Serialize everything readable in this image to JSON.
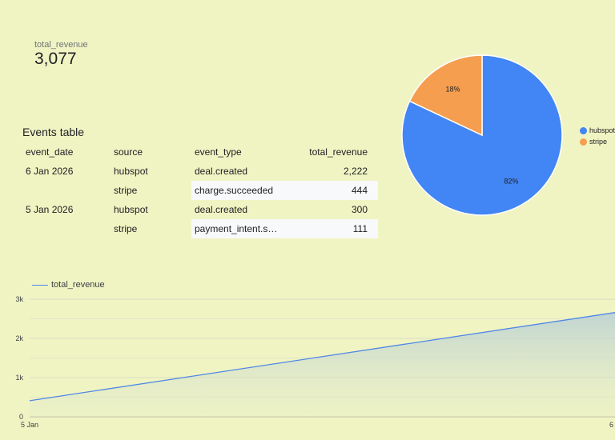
{
  "scorecard": {
    "label": "total_revenue",
    "value": "3,077"
  },
  "table": {
    "title": "Events table",
    "headers": [
      "event_date",
      "source",
      "event_type",
      "total_revenue"
    ],
    "rows": [
      {
        "date": "6 Jan 2026",
        "source": "hubspot",
        "type": "deal.created",
        "revenue": "2,222",
        "highlight": false
      },
      {
        "date": "",
        "source": "stripe",
        "type": "charge.succeeded",
        "revenue": "444",
        "highlight": true
      },
      {
        "date": "5 Jan 2026",
        "source": "hubspot",
        "type": "deal.created",
        "revenue": "300",
        "highlight": false
      },
      {
        "date": "",
        "source": "stripe",
        "type": "payment_intent.s…",
        "revenue": "111",
        "highlight": true
      }
    ]
  },
  "chart_data": [
    {
      "type": "pie",
      "slices": [
        {
          "label": "hubspot",
          "value": 82,
          "display": "82%",
          "color": "#4285f4"
        },
        {
          "label": "stripe",
          "value": 18,
          "display": "18%",
          "color": "#f59e4f"
        }
      ],
      "legend_position": "right"
    },
    {
      "type": "area",
      "x": [
        "5 Jan",
        "6"
      ],
      "series": [
        {
          "name": "total_revenue",
          "values": [
            411,
            2666
          ],
          "color": "#4f87e8"
        }
      ],
      "ylim": [
        0,
        3000
      ],
      "yticks": [
        "0",
        "1k",
        "2k",
        "3k"
      ],
      "xticks": [
        "5 Jan",
        "6"
      ],
      "grid": true,
      "legend_position": "top-left"
    }
  ]
}
